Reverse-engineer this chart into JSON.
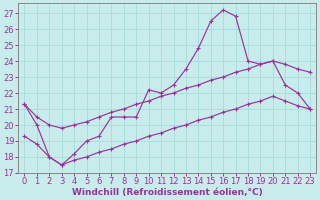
{
  "background_color": "#c8ecec",
  "grid_color": "#aadddd",
  "line_color": "#993399",
  "xlim": [
    -0.5,
    23.5
  ],
  "ylim": [
    17,
    27.6
  ],
  "yticks": [
    17,
    18,
    19,
    20,
    21,
    22,
    23,
    24,
    25,
    26,
    27
  ],
  "xticks": [
    0,
    1,
    2,
    3,
    4,
    5,
    6,
    7,
    8,
    9,
    10,
    11,
    12,
    13,
    14,
    15,
    16,
    17,
    18,
    19,
    20,
    21,
    22,
    23
  ],
  "xlabel": "Windchill (Refroidissement éolien,°C)",
  "line_curve_x": [
    0,
    1,
    2,
    3,
    4,
    5,
    6,
    7,
    8,
    9,
    10,
    11,
    12,
    13,
    14,
    15,
    16,
    17,
    18,
    19,
    20,
    21,
    22,
    23
  ],
  "line_curve_y": [
    21.3,
    20.0,
    18.0,
    17.5,
    18.2,
    19.0,
    19.3,
    20.5,
    20.5,
    20.5,
    22.2,
    22.0,
    22.5,
    23.5,
    24.8,
    26.5,
    27.2,
    26.8,
    24.0,
    23.8,
    24.0,
    22.5,
    22.0,
    21.0
  ],
  "line_mid_x": [
    0,
    1,
    2,
    3,
    4,
    5,
    6,
    7,
    8,
    9,
    10,
    11,
    12,
    13,
    14,
    15,
    16,
    17,
    18,
    19,
    20,
    21,
    22,
    23
  ],
  "line_mid_y": [
    21.3,
    20.5,
    20.0,
    19.8,
    20.0,
    20.2,
    20.5,
    20.8,
    21.0,
    21.3,
    21.5,
    21.8,
    22.0,
    22.3,
    22.5,
    22.8,
    23.0,
    23.3,
    23.5,
    23.8,
    24.0,
    23.8,
    23.5,
    23.3
  ],
  "line_bot_x": [
    0,
    1,
    2,
    3,
    4,
    5,
    6,
    7,
    8,
    9,
    10,
    11,
    12,
    13,
    14,
    15,
    16,
    17,
    18,
    19,
    20,
    21,
    22,
    23
  ],
  "line_bot_y": [
    19.3,
    18.8,
    18.0,
    17.5,
    17.8,
    18.0,
    18.3,
    18.5,
    18.8,
    19.0,
    19.3,
    19.5,
    19.8,
    20.0,
    20.3,
    20.5,
    20.8,
    21.0,
    21.3,
    21.5,
    21.8,
    21.5,
    21.2,
    21.0
  ],
  "xlabel_fontsize": 6.5,
  "tick_fontsize": 6,
  "marker": "+",
  "markersize": 3.5,
  "linewidth": 0.85
}
